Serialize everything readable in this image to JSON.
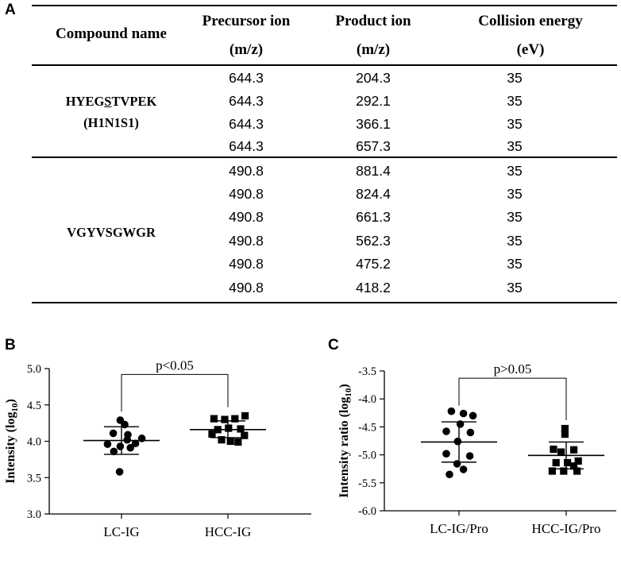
{
  "panels": {
    "a": "A",
    "b": "B",
    "c": "C"
  },
  "table": {
    "headers": {
      "compound": "Compound name",
      "precursor": [
        "Precursor ion",
        "(m/z)"
      ],
      "product": [
        "Product ion",
        "(m/z)"
      ],
      "collision": [
        "Collision energy",
        "(eV)"
      ]
    },
    "compounds": [
      {
        "name_parts": [
          "HYEG",
          "S",
          "TVPEK"
        ],
        "name_line2": "(H1N1S1)",
        "rows": [
          [
            "644.3",
            "204.3",
            "35"
          ],
          [
            "644.3",
            "292.1",
            "35"
          ],
          [
            "644.3",
            "366.1",
            "35"
          ],
          [
            "644.3",
            "657.3",
            "35"
          ]
        ]
      },
      {
        "name_parts": [
          "VGYVSGWGR"
        ],
        "name_line2": "",
        "rows": [
          [
            "490.8",
            "881.4",
            "35"
          ],
          [
            "490.8",
            "824.4",
            "35"
          ],
          [
            "490.8",
            "661.3",
            "35"
          ],
          [
            "490.8",
            "562.3",
            "35"
          ],
          [
            "490.8",
            "475.2",
            "35"
          ],
          [
            "490.8",
            "418.2",
            "35"
          ]
        ]
      }
    ]
  },
  "chart_data": [
    {
      "type": "scatter",
      "panel": "B",
      "title": "",
      "xlabel": "",
      "ylabel_main": "Intensity (log",
      "ylabel_sub": "10",
      "ylabel_tail": ")",
      "ylim": [
        3.0,
        5.0
      ],
      "yticks": [
        3.0,
        3.5,
        4.0,
        4.5,
        5.0
      ],
      "ytick_labels": [
        "3.0",
        "3.5",
        "4.0",
        "4.5",
        "5.0"
      ],
      "categories": [
        "LC-IG",
        "HCC-IG"
      ],
      "significance": "p<0.05",
      "bracket_top": 4.92,
      "bracket_left_end": 4.41,
      "bracket_right_end": 4.47,
      "series": [
        {
          "name": "LC-IG",
          "marker": "circle",
          "mean": 4.01,
          "sd_upper": 4.2,
          "sd_lower": 3.82,
          "points": [
            {
              "x": -0.02,
              "y": 4.29
            },
            {
              "x": 0.05,
              "y": 4.23
            },
            {
              "x": -0.13,
              "y": 4.11
            },
            {
              "x": 0.1,
              "y": 4.09
            },
            {
              "x": 0.32,
              "y": 4.04
            },
            {
              "x": 0.09,
              "y": 4.02
            },
            {
              "x": -0.22,
              "y": 3.96
            },
            {
              "x": 0.22,
              "y": 3.97
            },
            {
              "x": -0.02,
              "y": 3.93
            },
            {
              "x": 0.14,
              "y": 3.91
            },
            {
              "x": -0.12,
              "y": 3.86
            },
            {
              "x": -0.03,
              "y": 3.58
            }
          ]
        },
        {
          "name": "HCC-IG",
          "marker": "square",
          "mean": 4.16,
          "sd_upper": 4.28,
          "sd_lower": 4.05,
          "points": [
            {
              "x": -0.22,
              "y": 4.31
            },
            {
              "x": -0.05,
              "y": 4.3
            },
            {
              "x": 0.11,
              "y": 4.31
            },
            {
              "x": 0.27,
              "y": 4.35
            },
            {
              "x": -0.16,
              "y": 4.16
            },
            {
              "x": 0.01,
              "y": 4.18
            },
            {
              "x": 0.2,
              "y": 4.17
            },
            {
              "x": -0.25,
              "y": 4.1
            },
            {
              "x": 0.26,
              "y": 4.08
            },
            {
              "x": -0.1,
              "y": 4.02
            },
            {
              "x": 0.04,
              "y": 4.0
            },
            {
              "x": 0.16,
              "y": 3.99
            }
          ]
        }
      ]
    },
    {
      "type": "scatter",
      "panel": "C",
      "title": "",
      "xlabel": "",
      "ylabel_main": "Intensity ratio (log",
      "ylabel_sub": "10",
      "ylabel_tail": ")",
      "ylim": [
        -6.0,
        -3.5
      ],
      "yticks": [
        -6.0,
        -5.5,
        -5.0,
        -4.5,
        -4.0,
        -3.5
      ],
      "ytick_labels": [
        "-6.0",
        "-5.5",
        "-5.0",
        "-4.5",
        "-4.0",
        "-3.5"
      ],
      "categories": [
        "LC-IG/Pro",
        "HCC-IG/Pro"
      ],
      "significance": "p>0.05",
      "bracket_top": -3.63,
      "bracket_left_end": -4.12,
      "bracket_right_end": -4.38,
      "series": [
        {
          "name": "LC-IG/Pro",
          "marker": "circle",
          "mean": -4.77,
          "sd_upper": -4.41,
          "sd_lower": -5.13,
          "points": [
            {
              "x": -0.12,
              "y": -4.22
            },
            {
              "x": 0.07,
              "y": -4.26
            },
            {
              "x": 0.22,
              "y": -4.3
            },
            {
              "x": 0.02,
              "y": -4.45
            },
            {
              "x": -0.2,
              "y": -4.58
            },
            {
              "x": 0.18,
              "y": -4.6
            },
            {
              "x": -0.02,
              "y": -4.76
            },
            {
              "x": -0.2,
              "y": -4.98
            },
            {
              "x": 0.17,
              "y": -5.02
            },
            {
              "x": -0.03,
              "y": -5.16
            },
            {
              "x": 0.07,
              "y": -5.26
            },
            {
              "x": -0.15,
              "y": -5.35
            }
          ]
        },
        {
          "name": "HCC-IG/Pro",
          "marker": "square",
          "mean": -5.01,
          "sd_upper": -4.77,
          "sd_lower": -5.25,
          "points": [
            {
              "x": -0.02,
              "y": -4.53
            },
            {
              "x": -0.02,
              "y": -4.63
            },
            {
              "x": -0.2,
              "y": -4.9
            },
            {
              "x": 0.12,
              "y": -4.91
            },
            {
              "x": -0.08,
              "y": -4.95
            },
            {
              "x": 0.19,
              "y": -5.11
            },
            {
              "x": -0.16,
              "y": -5.14
            },
            {
              "x": 0.02,
              "y": -5.14
            },
            {
              "x": 0.12,
              "y": -5.2
            },
            {
              "x": -0.22,
              "y": -5.29
            },
            {
              "x": -0.04,
              "y": -5.29
            },
            {
              "x": 0.17,
              "y": -5.29
            }
          ]
        }
      ]
    }
  ]
}
